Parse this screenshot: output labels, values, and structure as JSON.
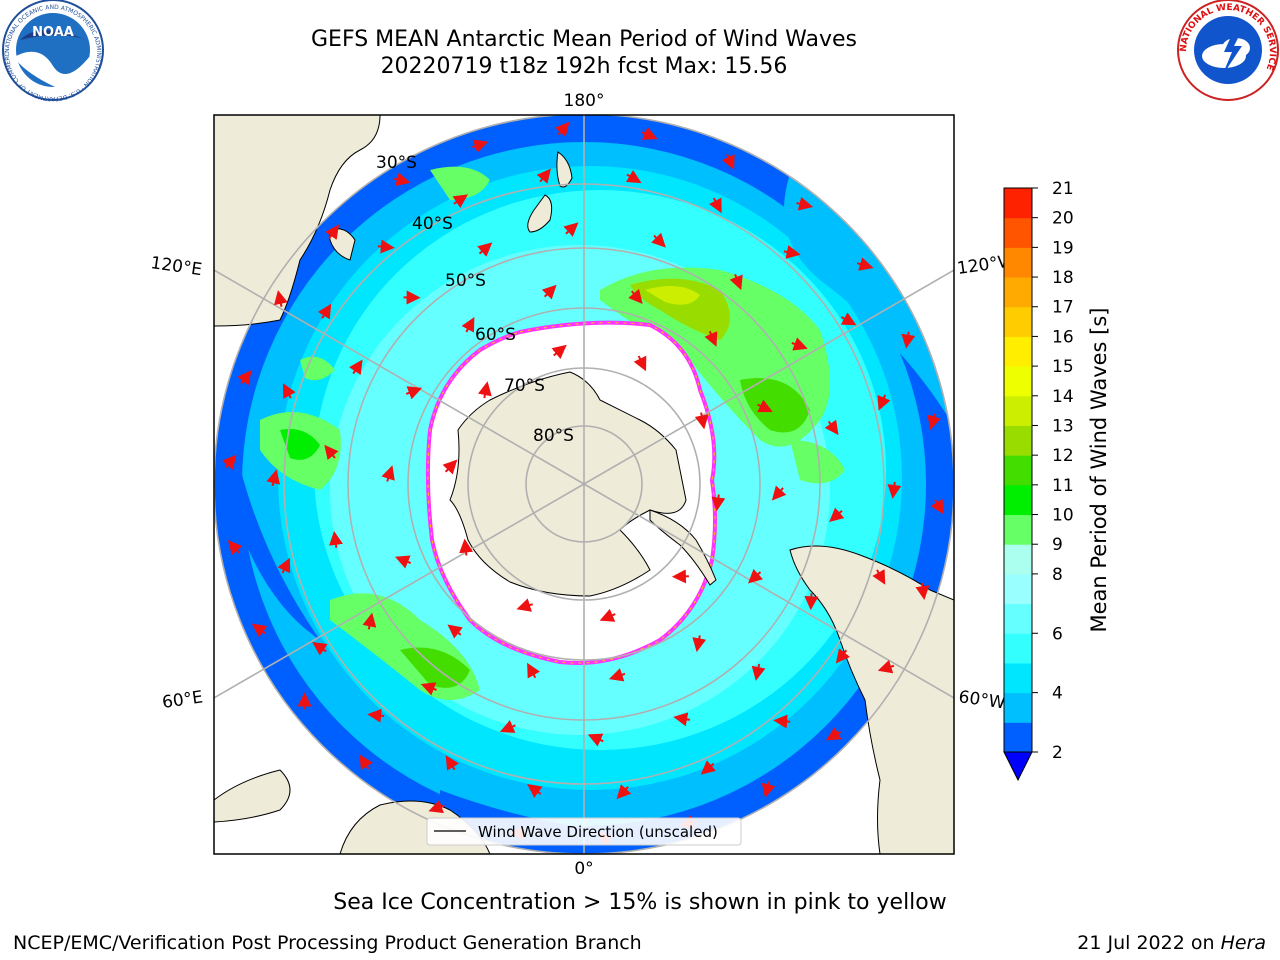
{
  "header": {
    "title_line1": "GEFS MEAN Antarctic Mean Period of Wind Waves",
    "title_line2": "20220719 t18z 192h fcst   Max: 15.56"
  },
  "logos": {
    "left": {
      "text": "NOAA",
      "ring_text": "NATIONAL OCEANIC AND ATMOSPHERIC ADMINISTRATION · U.S. DEPARTMENT OF COMMERCE ·"
    },
    "right": {
      "ring_text": "NATIONAL WEATHER SERVICE"
    }
  },
  "map": {
    "lon_labels": {
      "top": "180°",
      "bottom": "0°",
      "upper_left": "120°E",
      "lower_left": "60°E",
      "upper_right": "120°W",
      "lower_right": "60°W"
    },
    "lat_labels": [
      "30°S",
      "40°S",
      "50°S",
      "60°S",
      "70°S",
      "80°S"
    ],
    "legend": {
      "label": "Wind Wave Direction (unscaled)"
    },
    "colors": {
      "land": "#efebd9",
      "ice_edge": "#ff33ff",
      "arrow": "#ee1111",
      "grid": "#b0b0b0"
    }
  },
  "chart_data": {
    "type": "heatmap",
    "title": "GEFS MEAN Antarctic Mean Period of Wind Waves",
    "subtitle": "20220719 t18z 192h fcst   Max: 15.56",
    "max_value": 15.56,
    "colorbar": {
      "label": "Mean Period of Wind Waves [s]",
      "ticks": [
        "2",
        "4",
        "6",
        "8",
        "9",
        "10",
        "11",
        "12",
        "13",
        "14",
        "15",
        "16",
        "17",
        "18",
        "19",
        "20",
        "21"
      ],
      "levels": [
        2,
        3,
        4,
        5,
        6,
        7,
        8,
        9,
        10,
        11,
        12,
        13,
        14,
        15,
        16,
        17,
        18,
        19,
        20,
        21
      ],
      "colors": [
        "#0060ff",
        "#00bfff",
        "#00e6ff",
        "#33ffff",
        "#66ffff",
        "#99ffff",
        "#aaffee",
        "#66ff66",
        "#00ee00",
        "#44dd00",
        "#99dd00",
        "#ccee00",
        "#eeff00",
        "#ffee00",
        "#ffcc00",
        "#ffaa00",
        "#ff8800",
        "#ff5500",
        "#ff2200",
        "#ff0000"
      ],
      "extend": "min"
    }
  },
  "footer": {
    "note": "Sea Ice Concentration > 15% is shown in pink to yellow",
    "left": "NCEP/EMC/Verification Post Processing Product Generation Branch",
    "right_date": "21 Jul 2022 on ",
    "right_host": "Hera"
  }
}
